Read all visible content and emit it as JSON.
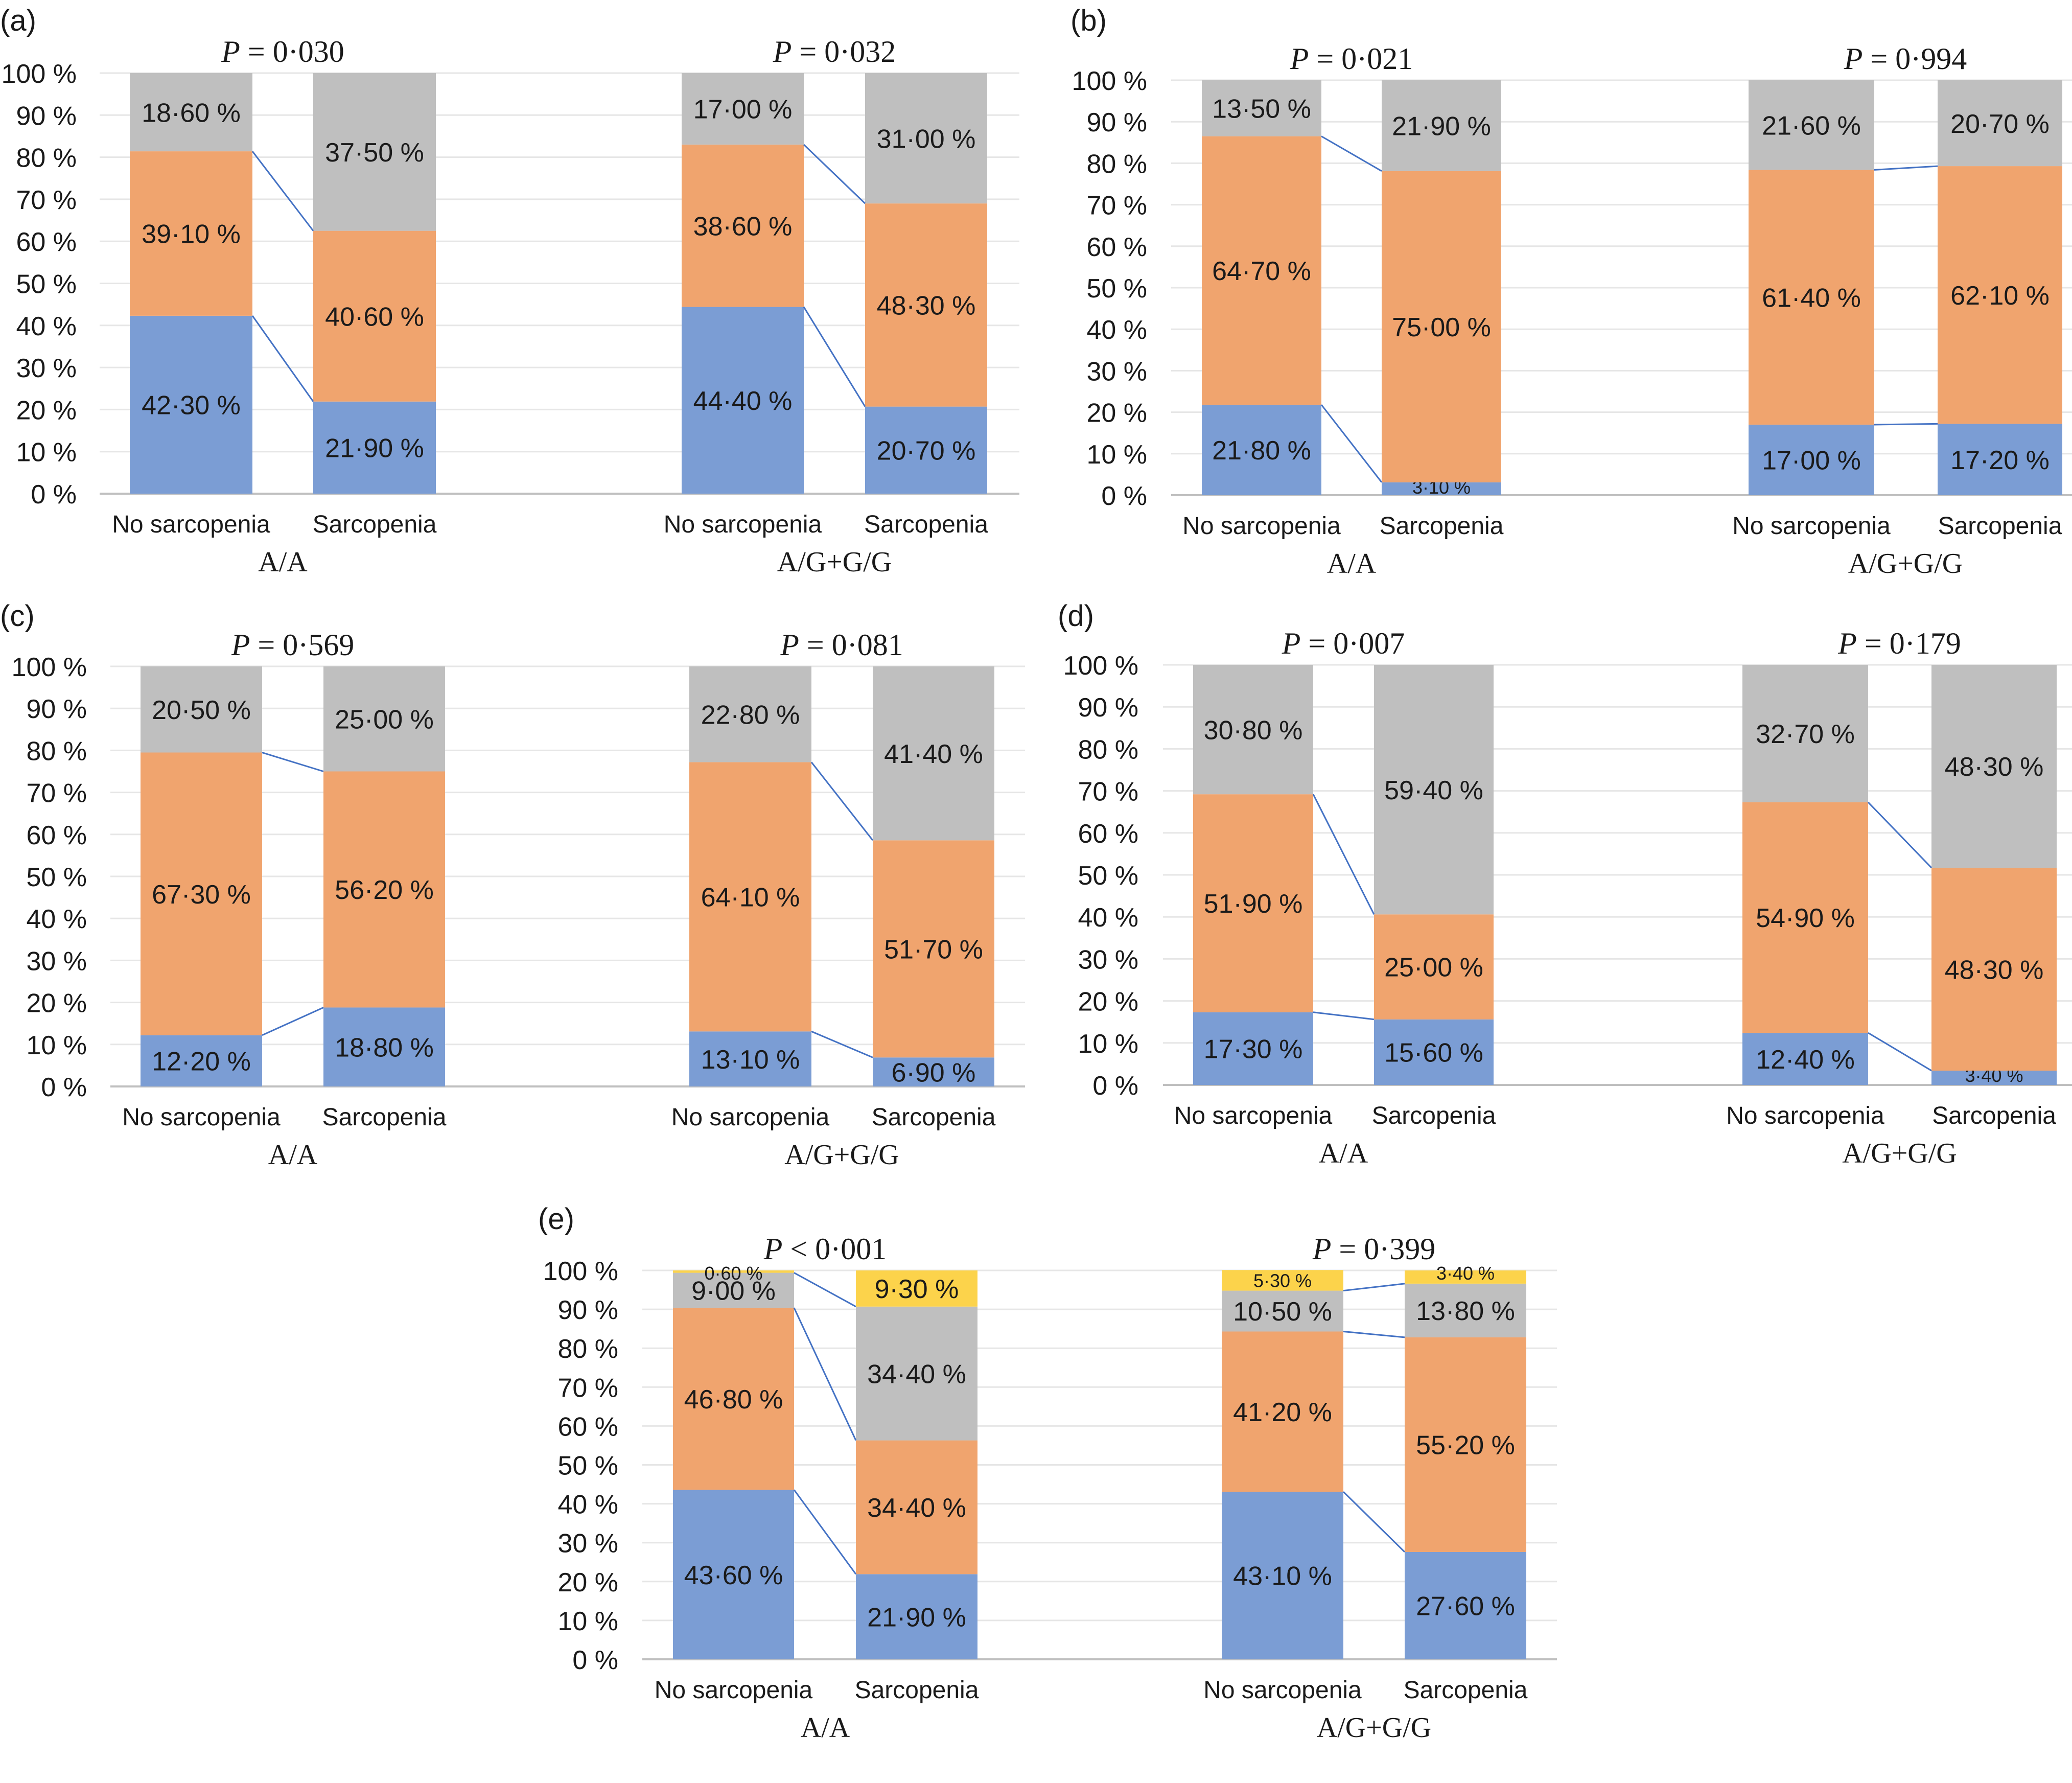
{
  "figure": {
    "segment_colors": {
      "blue": "#7b9dd4",
      "orange": "#f0a46e",
      "gray": "#bfbfbf",
      "yellow": "#fcd34b"
    },
    "connector_color": "#4472c4",
    "gridline_color": "#e6e6e6",
    "axis_color": "#bfbfbf",
    "text_color": "#1a1a1a"
  },
  "chart_data": [
    {
      "panel": "(a)",
      "type": "bar",
      "stacked": true,
      "ylim": [
        0,
        100
      ],
      "yticks": [
        "0 %",
        "10 %",
        "20 %",
        "30 %",
        "40 %",
        "50 %",
        "60 %",
        "70 %",
        "80 %",
        "90 %",
        "100 %"
      ],
      "grid": true,
      "groups": [
        {
          "label": "A/A",
          "p_value": "P = 0·030",
          "categories": [
            "No sarcopenia",
            "Sarcopenia"
          ],
          "series": [
            {
              "color": "blue",
              "values": [
                42.3,
                21.9
              ],
              "labels": [
                "42·30 %",
                "21·90 %"
              ]
            },
            {
              "color": "orange",
              "values": [
                39.1,
                40.6
              ],
              "labels": [
                "39·10 %",
                "40·60 %"
              ]
            },
            {
              "color": "gray",
              "values": [
                18.6,
                37.5
              ],
              "labels": [
                "18·60 %",
                "37·50 %"
              ]
            }
          ]
        },
        {
          "label": "A/G+G/G",
          "p_value": "P = 0·032",
          "categories": [
            "No sarcopenia",
            "Sarcopenia"
          ],
          "series": [
            {
              "color": "blue",
              "values": [
                44.4,
                20.7
              ],
              "labels": [
                "44·40 %",
                "20·70 %"
              ]
            },
            {
              "color": "orange",
              "values": [
                38.6,
                48.3
              ],
              "labels": [
                "38·60 %",
                "48·30 %"
              ]
            },
            {
              "color": "gray",
              "values": [
                17.0,
                31.0
              ],
              "labels": [
                "17·00 %",
                "31·00 %"
              ]
            }
          ]
        }
      ]
    },
    {
      "panel": "(b)",
      "type": "bar",
      "stacked": true,
      "ylim": [
        0,
        100
      ],
      "yticks": [
        "0 %",
        "10 %",
        "20 %",
        "30 %",
        "40 %",
        "50 %",
        "60 %",
        "70 %",
        "80 %",
        "90 %",
        "100 %"
      ],
      "grid": true,
      "groups": [
        {
          "label": "A/A",
          "p_value": "P = 0·021",
          "categories": [
            "No sarcopenia",
            "Sarcopenia"
          ],
          "series": [
            {
              "color": "blue",
              "values": [
                21.8,
                3.1
              ],
              "labels": [
                "21·80 %",
                "3·10 %"
              ]
            },
            {
              "color": "orange",
              "values": [
                64.7,
                75.0
              ],
              "labels": [
                "64·70 %",
                "75·00 %"
              ]
            },
            {
              "color": "gray",
              "values": [
                13.5,
                21.9
              ],
              "labels": [
                "13·50 %",
                "21·90 %"
              ]
            }
          ]
        },
        {
          "label": "A/G+G/G",
          "p_value": "P = 0·994",
          "categories": [
            "No sarcopenia",
            "Sarcopenia"
          ],
          "series": [
            {
              "color": "blue",
              "values": [
                17.0,
                17.2
              ],
              "labels": [
                "17·00 %",
                "17·20 %"
              ]
            },
            {
              "color": "orange",
              "values": [
                61.4,
                62.1
              ],
              "labels": [
                "61·40 %",
                "62·10 %"
              ]
            },
            {
              "color": "gray",
              "values": [
                21.6,
                20.7
              ],
              "labels": [
                "21·60 %",
                "20·70 %"
              ]
            }
          ]
        }
      ]
    },
    {
      "panel": "(c)",
      "type": "bar",
      "stacked": true,
      "ylim": [
        0,
        100
      ],
      "yticks": [
        "0 %",
        "10 %",
        "20 %",
        "30 %",
        "40 %",
        "50 %",
        "60 %",
        "70 %",
        "80 %",
        "90 %",
        "100 %"
      ],
      "grid": true,
      "groups": [
        {
          "label": "A/A",
          "p_value": "P = 0·569",
          "categories": [
            "No sarcopenia",
            "Sarcopenia"
          ],
          "series": [
            {
              "color": "blue",
              "values": [
                12.2,
                18.8
              ],
              "labels": [
                "12·20 %",
                "18·80 %"
              ]
            },
            {
              "color": "orange",
              "values": [
                67.3,
                56.2
              ],
              "labels": [
                "67·30 %",
                "56·20 %"
              ]
            },
            {
              "color": "gray",
              "values": [
                20.5,
                25.0
              ],
              "labels": [
                "20·50 %",
                "25·00 %"
              ]
            }
          ]
        },
        {
          "label": "A/G+G/G",
          "p_value": "P = 0·081",
          "categories": [
            "No sarcopenia",
            "Sarcopenia"
          ],
          "series": [
            {
              "color": "blue",
              "values": [
                13.1,
                6.9
              ],
              "labels": [
                "13·10 %",
                "6·90 %"
              ]
            },
            {
              "color": "orange",
              "values": [
                64.1,
                51.7
              ],
              "labels": [
                "64·10 %",
                "51·70 %"
              ]
            },
            {
              "color": "gray",
              "values": [
                22.8,
                41.4
              ],
              "labels": [
                "22·80 %",
                "41·40 %"
              ]
            }
          ]
        }
      ]
    },
    {
      "panel": "(d)",
      "type": "bar",
      "stacked": true,
      "ylim": [
        0,
        100
      ],
      "yticks": [
        "0 %",
        "10 %",
        "20 %",
        "30 %",
        "40 %",
        "50 %",
        "60 %",
        "70 %",
        "80 %",
        "90 %",
        "100 %"
      ],
      "grid": true,
      "groups": [
        {
          "label": "A/A",
          "p_value": "P = 0·007",
          "categories": [
            "No sarcopenia",
            "Sarcopenia"
          ],
          "series": [
            {
              "color": "blue",
              "values": [
                17.3,
                15.6
              ],
              "labels": [
                "17·30 %",
                "15·60 %"
              ]
            },
            {
              "color": "orange",
              "values": [
                51.9,
                25.0
              ],
              "labels": [
                "51·90 %",
                "25·00 %"
              ]
            },
            {
              "color": "gray",
              "values": [
                30.8,
                59.4
              ],
              "labels": [
                "30·80 %",
                "59·40 %"
              ]
            }
          ]
        },
        {
          "label": "A/G+G/G",
          "p_value": "P = 0·179",
          "categories": [
            "No sarcopenia",
            "Sarcopenia"
          ],
          "series": [
            {
              "color": "blue",
              "values": [
                12.4,
                3.4
              ],
              "labels": [
                "12·40 %",
                "3·40 %"
              ]
            },
            {
              "color": "orange",
              "values": [
                54.9,
                48.3
              ],
              "labels": [
                "54·90 %",
                "48·30 %"
              ]
            },
            {
              "color": "gray",
              "values": [
                32.7,
                48.3
              ],
              "labels": [
                "32·70 %",
                "48·30 %"
              ]
            }
          ]
        }
      ]
    },
    {
      "panel": "(e)",
      "type": "bar",
      "stacked": true,
      "ylim": [
        0,
        100
      ],
      "yticks": [
        "0 %",
        "10 %",
        "20 %",
        "30 %",
        "40 %",
        "50 %",
        "60 %",
        "70 %",
        "80 %",
        "90 %",
        "100 %"
      ],
      "grid": true,
      "groups": [
        {
          "label": "A/A",
          "p_value": "P < 0·001",
          "categories": [
            "No sarcopenia",
            "Sarcopenia"
          ],
          "series": [
            {
              "color": "blue",
              "values": [
                43.6,
                21.9
              ],
              "labels": [
                "43·60 %",
                "21·90 %"
              ]
            },
            {
              "color": "orange",
              "values": [
                46.8,
                34.4
              ],
              "labels": [
                "46·80 %",
                "34·40 %"
              ]
            },
            {
              "color": "gray",
              "values": [
                9.0,
                34.4
              ],
              "labels": [
                "9·00 %",
                "34·40 %"
              ]
            },
            {
              "color": "yellow",
              "values": [
                0.6,
                9.3
              ],
              "labels": [
                "0·60 %",
                "9·30 %"
              ]
            }
          ]
        },
        {
          "label": "A/G+G/G",
          "p_value": "P = 0·399",
          "categories": [
            "No sarcopenia",
            "Sarcopenia"
          ],
          "series": [
            {
              "color": "blue",
              "values": [
                43.1,
                27.6
              ],
              "labels": [
                "43·10 %",
                "27·60 %"
              ]
            },
            {
              "color": "orange",
              "values": [
                41.2,
                55.2
              ],
              "labels": [
                "41·20 %",
                "55·20 %"
              ]
            },
            {
              "color": "gray",
              "values": [
                10.5,
                13.8
              ],
              "labels": [
                "10·50 %",
                "13·80 %"
              ]
            },
            {
              "color": "yellow",
              "values": [
                5.3,
                3.4
              ],
              "labels": [
                "5·30 %",
                "3·40 %"
              ]
            }
          ]
        }
      ]
    }
  ]
}
